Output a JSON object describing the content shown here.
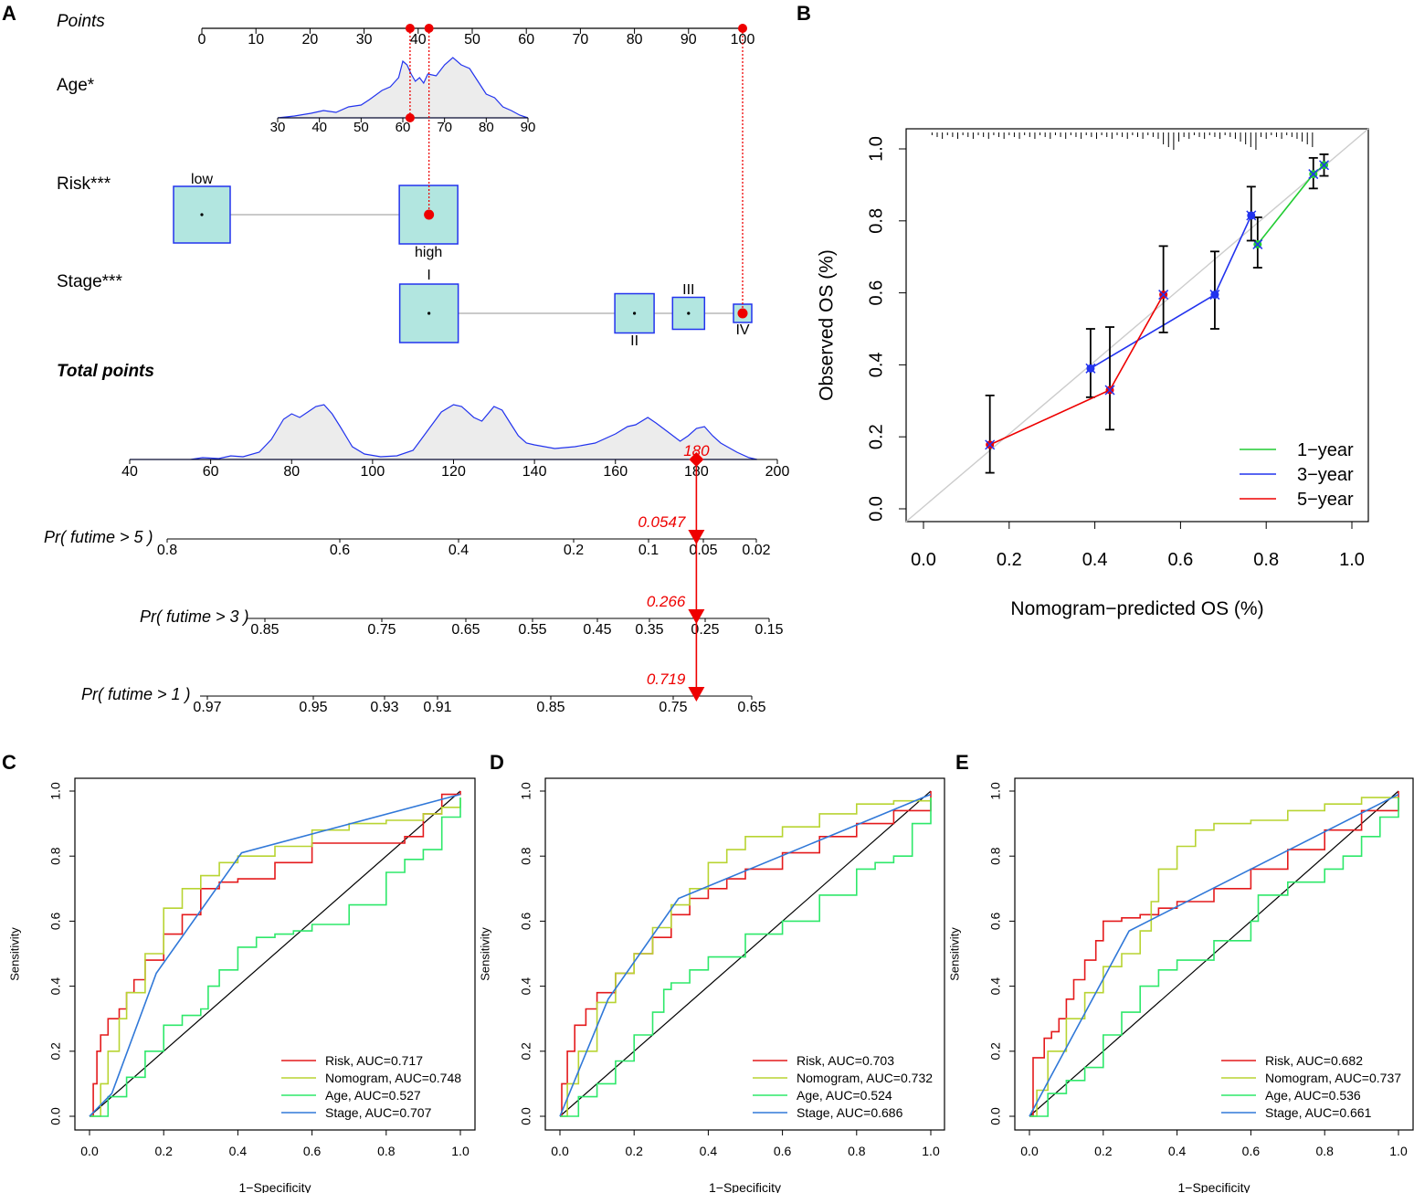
{
  "panel_letters": {
    "A": "A",
    "B": "B",
    "C": "C",
    "D": "D",
    "E": "E"
  },
  "colors": {
    "red": "#ee0000",
    "blue": "#2233ee",
    "green": "#22cc33",
    "lime": "#aacc22",
    "roc_red": "#e41a1c",
    "roc_lime": "#b8d432",
    "roc_green": "#2ee86a",
    "roc_blue": "#3078d8",
    "box_fill": "#b2e6e0",
    "density_fill": "#ececec"
  },
  "chart_data": [
    {
      "id": "A",
      "type": "nomogram",
      "points_label": "Points",
      "points_ticks": [
        "0",
        "10",
        "20",
        "30",
        "40",
        "50",
        "60",
        "70",
        "80",
        "90",
        "100"
      ],
      "age": {
        "label": "Age*",
        "ticks": [
          "30",
          "40",
          "50",
          "60",
          "70",
          "80",
          "90"
        ]
      },
      "risk": {
        "label": "Risk***",
        "levels": [
          "low",
          "high"
        ],
        "points": [
          0,
          42
        ]
      },
      "stage": {
        "label": "Stage***",
        "levels": [
          "I",
          "II",
          "III",
          "IV"
        ],
        "points": [
          42,
          80,
          90,
          100
        ]
      },
      "total_points": {
        "label": "Total points",
        "ticks": [
          "40",
          "60",
          "80",
          "100",
          "120",
          "140",
          "160",
          "180",
          "200"
        ],
        "marker_value": "180"
      },
      "patient_points": [
        38.5,
        42,
        100
      ],
      "survival_scales": [
        {
          "label": "Pr( futime > 5 )",
          "ticks": [
            "0.8",
            "0.6",
            "0.4",
            "0.2",
            "0.1",
            "0.05",
            "0.02"
          ],
          "value": "0.0547"
        },
        {
          "label": "Pr( futime > 3 )",
          "ticks": [
            "0.85",
            "0.75",
            "0.65",
            "0.55",
            "0.45",
            "0.35",
            "0.25",
            "0.15"
          ],
          "value": "0.266"
        },
        {
          "label": "Pr( futime > 1 )",
          "ticks": [
            "0.97",
            "0.95",
            "0.93",
            "0.91",
            "0.85",
            "0.75",
            "0.65"
          ],
          "value": "0.719"
        }
      ]
    },
    {
      "id": "B",
      "type": "calibration",
      "xlabel": "Nomogram−predicted OS (%)",
      "ylabel": "Observed OS (%)",
      "xlim": [
        0,
        1
      ],
      "ylim": [
        0,
        1
      ],
      "xticks": [
        "0.0",
        "0.2",
        "0.4",
        "0.6",
        "0.8",
        "1.0"
      ],
      "yticks": [
        "0.0",
        "0.2",
        "0.4",
        "0.6",
        "0.8",
        "1.0"
      ],
      "legend": [
        "1−year",
        "3−year",
        "5−year"
      ],
      "series": [
        {
          "name": "1-year",
          "x": [
            0.78,
            0.91,
            0.935
          ],
          "y": [
            0.735,
            0.93,
            0.955
          ],
          "lo": [
            0.67,
            0.89,
            0.925
          ],
          "hi": [
            0.81,
            0.975,
            0.985
          ]
        },
        {
          "name": "3-year",
          "x": [
            0.39,
            0.68,
            0.765
          ],
          "y": [
            0.39,
            0.595,
            0.815
          ],
          "lo": [
            0.31,
            0.5,
            0.745
          ],
          "hi": [
            0.5,
            0.715,
            0.895
          ]
        },
        {
          "name": "5-year",
          "x": [
            0.155,
            0.435,
            0.56
          ],
          "y": [
            0.178,
            0.33,
            0.595
          ],
          "lo": [
            0.1,
            0.22,
            0.49
          ],
          "hi": [
            0.315,
            0.505,
            0.73
          ]
        }
      ]
    },
    {
      "id": "C",
      "type": "roc",
      "xlabel": "1−Specificity",
      "ylabel": "Sensitivity",
      "ticks": [
        "0.0",
        "0.2",
        "0.4",
        "0.6",
        "0.8",
        "1.0"
      ],
      "series": [
        {
          "name": "Risk",
          "legend": "Risk, AUC=0.717",
          "x": [
            0,
            0.01,
            0.02,
            0.03,
            0.05,
            0.08,
            0.1,
            0.12,
            0.15,
            0.2,
            0.25,
            0.3,
            0.35,
            0.4,
            0.5,
            0.6,
            0.7,
            0.8,
            0.85,
            0.9,
            0.95,
            1
          ],
          "y": [
            0,
            0.1,
            0.2,
            0.25,
            0.3,
            0.33,
            0.38,
            0.42,
            0.48,
            0.56,
            0.62,
            0.7,
            0.72,
            0.73,
            0.78,
            0.84,
            0.84,
            0.84,
            0.86,
            0.93,
            0.99,
            1
          ]
        },
        {
          "name": "Nomogram",
          "legend": "Nomogram, AUC=0.748",
          "x": [
            0,
            0.03,
            0.05,
            0.08,
            0.1,
            0.15,
            0.2,
            0.25,
            0.3,
            0.35,
            0.4,
            0.5,
            0.6,
            0.7,
            0.8,
            0.9,
            0.95,
            1
          ],
          "y": [
            0,
            0.1,
            0.2,
            0.3,
            0.38,
            0.5,
            0.64,
            0.7,
            0.74,
            0.78,
            0.8,
            0.83,
            0.88,
            0.9,
            0.91,
            0.93,
            0.95,
            0.98
          ]
        },
        {
          "name": "Age",
          "legend": "Age, AUC=0.527",
          "x": [
            0,
            0.05,
            0.1,
            0.15,
            0.2,
            0.25,
            0.3,
            0.32,
            0.35,
            0.4,
            0.45,
            0.5,
            0.55,
            0.6,
            0.7,
            0.8,
            0.85,
            0.9,
            0.95,
            1
          ],
          "y": [
            0,
            0.06,
            0.12,
            0.2,
            0.28,
            0.31,
            0.33,
            0.4,
            0.45,
            0.52,
            0.55,
            0.56,
            0.57,
            0.59,
            0.65,
            0.75,
            0.79,
            0.82,
            0.92,
            0.98
          ]
        },
        {
          "name": "Stage",
          "legend": "Stage, AUC=0.707",
          "x": [
            0,
            0.06,
            0.18,
            0.41,
            1
          ],
          "y": [
            0,
            0.07,
            0.44,
            0.81,
            0.99
          ]
        }
      ]
    },
    {
      "id": "D",
      "type": "roc",
      "xlabel": "1−Specificity",
      "ylabel": "Sensitivity",
      "ticks": [
        "0.0",
        "0.2",
        "0.4",
        "0.6",
        "0.8",
        "1.0"
      ],
      "series": [
        {
          "name": "Risk",
          "legend": "Risk, AUC=0.703",
          "x": [
            0,
            0.005,
            0.02,
            0.04,
            0.07,
            0.1,
            0.15,
            0.2,
            0.25,
            0.3,
            0.35,
            0.4,
            0.45,
            0.5,
            0.6,
            0.7,
            0.8,
            0.9,
            1
          ],
          "y": [
            0,
            0.1,
            0.2,
            0.28,
            0.33,
            0.38,
            0.44,
            0.5,
            0.55,
            0.62,
            0.67,
            0.7,
            0.73,
            0.76,
            0.81,
            0.86,
            0.9,
            0.94,
            1
          ]
        },
        {
          "name": "Nomogram",
          "legend": "Nomogram, AUC=0.732",
          "x": [
            0,
            0.02,
            0.05,
            0.1,
            0.15,
            0.2,
            0.25,
            0.3,
            0.35,
            0.4,
            0.45,
            0.5,
            0.6,
            0.7,
            0.8,
            0.9,
            1
          ],
          "y": [
            0,
            0.1,
            0.2,
            0.35,
            0.44,
            0.5,
            0.58,
            0.65,
            0.7,
            0.78,
            0.82,
            0.86,
            0.89,
            0.93,
            0.96,
            0.97,
            0.98
          ]
        },
        {
          "name": "Age",
          "legend": "Age, AUC=0.524",
          "x": [
            0,
            0.05,
            0.1,
            0.15,
            0.2,
            0.25,
            0.28,
            0.3,
            0.35,
            0.4,
            0.5,
            0.6,
            0.7,
            0.8,
            0.85,
            0.9,
            0.95,
            1
          ],
          "y": [
            0,
            0.06,
            0.1,
            0.17,
            0.25,
            0.32,
            0.39,
            0.41,
            0.45,
            0.49,
            0.56,
            0.6,
            0.68,
            0.76,
            0.78,
            0.8,
            0.9,
            0.98
          ]
        },
        {
          "name": "Stage",
          "legend": "Stage, AUC=0.686",
          "x": [
            0,
            0.13,
            0.32,
            1
          ],
          "y": [
            0,
            0.36,
            0.67,
            0.99
          ]
        }
      ]
    },
    {
      "id": "E",
      "type": "roc",
      "xlabel": "1−Specificity",
      "ylabel": "Sensitivity",
      "ticks": [
        "0.0",
        "0.2",
        "0.4",
        "0.6",
        "0.8",
        "1.0"
      ],
      "series": [
        {
          "name": "Risk",
          "legend": "Risk, AUC=0.682",
          "x": [
            0,
            0.01,
            0.04,
            0.06,
            0.08,
            0.1,
            0.12,
            0.15,
            0.18,
            0.2,
            0.25,
            0.3,
            0.35,
            0.4,
            0.5,
            0.6,
            0.7,
            0.8,
            0.9,
            1
          ],
          "y": [
            0,
            0.18,
            0.24,
            0.26,
            0.3,
            0.36,
            0.42,
            0.48,
            0.54,
            0.6,
            0.61,
            0.62,
            0.64,
            0.66,
            0.7,
            0.76,
            0.82,
            0.88,
            0.94,
            1
          ]
        },
        {
          "name": "Nomogram",
          "legend": "Nomogram, AUC=0.737",
          "x": [
            0,
            0.02,
            0.05,
            0.1,
            0.15,
            0.2,
            0.25,
            0.3,
            0.33,
            0.35,
            0.4,
            0.45,
            0.5,
            0.6,
            0.7,
            0.8,
            0.9,
            1
          ],
          "y": [
            0,
            0.08,
            0.2,
            0.3,
            0.38,
            0.46,
            0.5,
            0.57,
            0.66,
            0.76,
            0.83,
            0.88,
            0.9,
            0.91,
            0.94,
            0.96,
            0.98,
            0.98
          ]
        },
        {
          "name": "Age",
          "legend": "Age, AUC=0.536",
          "x": [
            0,
            0.05,
            0.1,
            0.15,
            0.2,
            0.25,
            0.3,
            0.35,
            0.4,
            0.5,
            0.6,
            0.62,
            0.7,
            0.8,
            0.85,
            0.9,
            0.95,
            1
          ],
          "y": [
            0,
            0.07,
            0.11,
            0.15,
            0.25,
            0.32,
            0.4,
            0.45,
            0.48,
            0.54,
            0.6,
            0.68,
            0.72,
            0.76,
            0.8,
            0.86,
            0.92,
            0.98
          ]
        },
        {
          "name": "Stage",
          "legend": "Stage, AUC=0.661",
          "x": [
            0,
            0.27,
            1
          ],
          "y": [
            0,
            0.57,
            0.99
          ]
        }
      ]
    }
  ]
}
